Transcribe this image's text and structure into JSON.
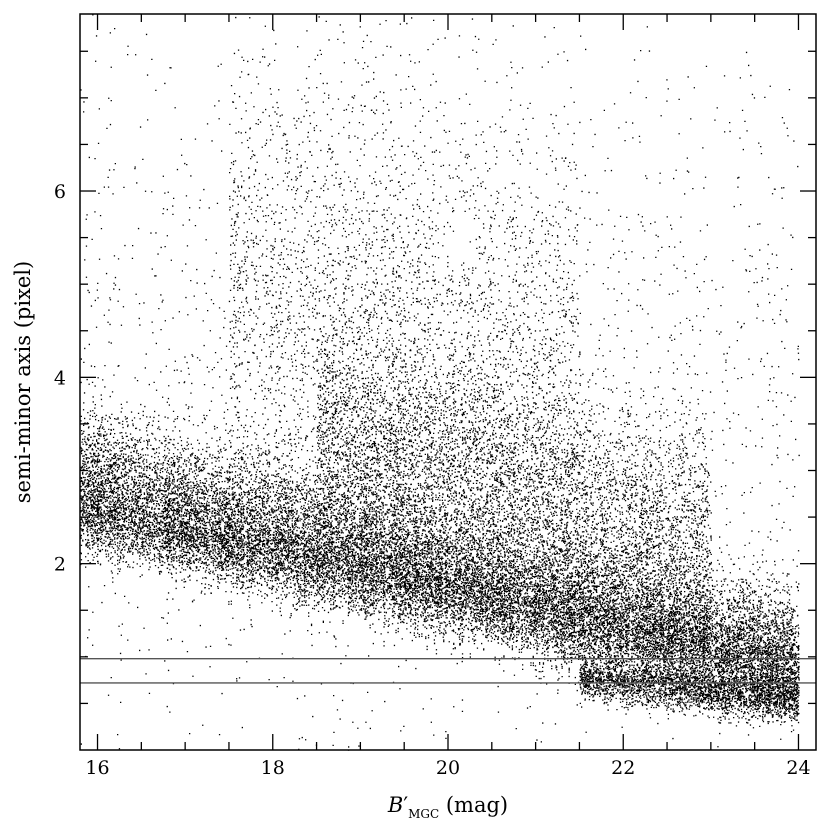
{
  "chart_data": {
    "type": "scatter",
    "title": "",
    "xlabel": {
      "main": "B",
      "prime": "′",
      "subscript": "MGC",
      "unit": " (mag)"
    },
    "ylabel": "semi-minor axis (pixel)",
    "xlim": [
      15.8,
      24.2
    ],
    "ylim": [
      0.0,
      7.9
    ],
    "x_ticks": [
      16,
      18,
      20,
      22,
      24
    ],
    "y_ticks": [
      2,
      4,
      6
    ],
    "grid": false,
    "marker": "dot",
    "point_color": "#000000",
    "reference_lines": [
      {
        "orientation": "horizontal",
        "y": 0.98,
        "color": "#555555"
      },
      {
        "orientation": "horizontal",
        "y": 0.72,
        "color": "#555555"
      }
    ],
    "series": [
      {
        "density_components": [
          {
            "x": [
              15.8,
              24.0
            ],
            "y_center": [
              3.0,
              1.05
            ],
            "y_spread": [
              0.35,
              0.35
            ],
            "weight": 0.4
          },
          {
            "x": [
              15.8,
              24.0
            ],
            "y_center": [
              2.55,
              0.85
            ],
            "y_spread": [
              0.22,
              0.22
            ],
            "weight": 0.25
          },
          {
            "x": [
              18.5,
              23.0
            ],
            "y_center": [
              3.4,
              2.2
            ],
            "y_spread": [
              0.6,
              0.6
            ],
            "weight": 0.15
          },
          {
            "x": [
              17.5,
              21.5
            ],
            "y_center": [
              5.0,
              4.0
            ],
            "y_spread": [
              1.3,
              1.3
            ],
            "weight": 0.08
          },
          {
            "x": [
              21.5,
              24.0
            ],
            "y_center": [
              0.78,
              0.55
            ],
            "y_spread": [
              0.12,
              0.12
            ],
            "weight": 0.07
          },
          {
            "x": [
              15.8,
              24.0
            ],
            "y_center": [
              4.0,
              4.0
            ],
            "y_spread": [
              2.0,
              2.0
            ],
            "weight": 0.05
          }
        ]
      }
    ]
  }
}
